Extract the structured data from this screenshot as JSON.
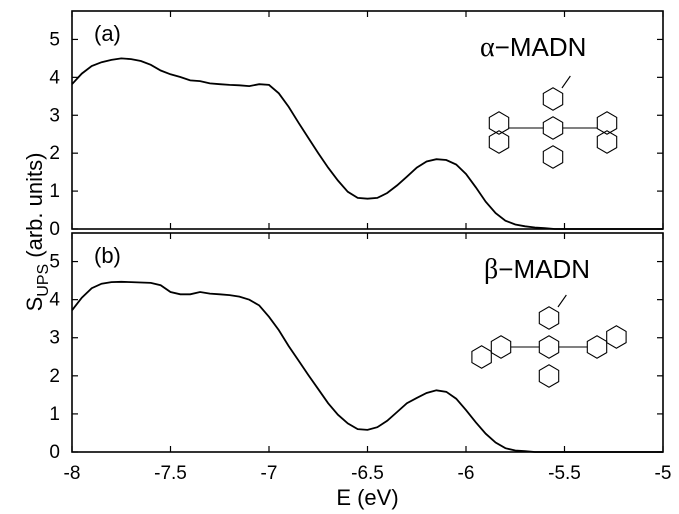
{
  "chart_data": [
    {
      "type": "line",
      "panel_label": "(a)",
      "molecule": {
        "greek": "α",
        "dash": "−",
        "name": "MADN",
        "structure_icon": "alpha-madn-structure-icon"
      },
      "xlabel": "E (eV)",
      "ylabel": "SUPS (arb. units)",
      "xlim": [
        -8,
        -5
      ],
      "ylim": [
        0,
        5.75
      ],
      "x_ticks": [
        "-8",
        "-7.5",
        "-7",
        "-6.5",
        "-6",
        "-5.5",
        "-5"
      ],
      "y_ticks": [
        "0",
        "1",
        "2",
        "3",
        "4",
        "5"
      ],
      "series": [
        {
          "points": [
            [
              -8.0,
              3.82
            ],
            [
              -7.95,
              4.1
            ],
            [
              -7.9,
              4.3
            ],
            [
              -7.85,
              4.4
            ],
            [
              -7.8,
              4.46
            ],
            [
              -7.75,
              4.5
            ],
            [
              -7.7,
              4.48
            ],
            [
              -7.65,
              4.43
            ],
            [
              -7.6,
              4.33
            ],
            [
              -7.55,
              4.18
            ],
            [
              -7.5,
              4.08
            ],
            [
              -7.45,
              4.01
            ],
            [
              -7.4,
              3.92
            ],
            [
              -7.35,
              3.9
            ],
            [
              -7.3,
              3.84
            ],
            [
              -7.25,
              3.82
            ],
            [
              -7.2,
              3.8
            ],
            [
              -7.15,
              3.79
            ],
            [
              -7.1,
              3.77
            ],
            [
              -7.05,
              3.82
            ],
            [
              -7.0,
              3.8
            ],
            [
              -6.95,
              3.58
            ],
            [
              -6.9,
              3.22
            ],
            [
              -6.85,
              2.8
            ],
            [
              -6.8,
              2.4
            ],
            [
              -6.75,
              2.0
            ],
            [
              -6.7,
              1.62
            ],
            [
              -6.65,
              1.28
            ],
            [
              -6.6,
              0.98
            ],
            [
              -6.55,
              0.82
            ],
            [
              -6.5,
              0.8
            ],
            [
              -6.45,
              0.82
            ],
            [
              -6.4,
              0.95
            ],
            [
              -6.35,
              1.15
            ],
            [
              -6.3,
              1.38
            ],
            [
              -6.25,
              1.62
            ],
            [
              -6.2,
              1.78
            ],
            [
              -6.15,
              1.84
            ],
            [
              -6.1,
              1.82
            ],
            [
              -6.05,
              1.7
            ],
            [
              -6.0,
              1.45
            ],
            [
              -5.95,
              1.1
            ],
            [
              -5.9,
              0.72
            ],
            [
              -5.85,
              0.42
            ],
            [
              -5.8,
              0.22
            ],
            [
              -5.75,
              0.12
            ],
            [
              -5.7,
              0.07
            ],
            [
              -5.65,
              0.04
            ],
            [
              -5.6,
              0.02
            ],
            [
              -5.55,
              0.0
            ],
            [
              -5.0,
              0.0
            ]
          ]
        }
      ]
    },
    {
      "type": "line",
      "panel_label": "(b)",
      "molecule": {
        "greek": "β",
        "dash": "−",
        "name": "MADN",
        "structure_icon": "beta-madn-structure-icon"
      },
      "xlabel": "E (eV)",
      "ylabel": "SUPS (arb. units)",
      "xlim": [
        -8,
        -5
      ],
      "ylim": [
        0,
        5.75
      ],
      "x_ticks": [
        "-8",
        "-7.5",
        "-7",
        "-6.5",
        "-6",
        "-5.5",
        "-5"
      ],
      "y_ticks": [
        "0",
        "1",
        "2",
        "3",
        "4",
        "5"
      ],
      "series": [
        {
          "points": [
            [
              -8.0,
              3.72
            ],
            [
              -7.95,
              4.05
            ],
            [
              -7.9,
              4.3
            ],
            [
              -7.85,
              4.42
            ],
            [
              -7.8,
              4.46
            ],
            [
              -7.75,
              4.47
            ],
            [
              -7.7,
              4.46
            ],
            [
              -7.65,
              4.45
            ],
            [
              -7.6,
              4.44
            ],
            [
              -7.55,
              4.38
            ],
            [
              -7.5,
              4.2
            ],
            [
              -7.45,
              4.14
            ],
            [
              -7.4,
              4.14
            ],
            [
              -7.35,
              4.2
            ],
            [
              -7.3,
              4.16
            ],
            [
              -7.25,
              4.14
            ],
            [
              -7.2,
              4.12
            ],
            [
              -7.15,
              4.08
            ],
            [
              -7.1,
              4.0
            ],
            [
              -7.05,
              3.85
            ],
            [
              -7.0,
              3.55
            ],
            [
              -6.95,
              3.2
            ],
            [
              -6.9,
              2.78
            ],
            [
              -6.85,
              2.4
            ],
            [
              -6.8,
              2.02
            ],
            [
              -6.75,
              1.65
            ],
            [
              -6.7,
              1.28
            ],
            [
              -6.65,
              0.98
            ],
            [
              -6.6,
              0.75
            ],
            [
              -6.55,
              0.6
            ],
            [
              -6.5,
              0.58
            ],
            [
              -6.45,
              0.65
            ],
            [
              -6.4,
              0.82
            ],
            [
              -6.35,
              1.05
            ],
            [
              -6.3,
              1.28
            ],
            [
              -6.25,
              1.42
            ],
            [
              -6.2,
              1.55
            ],
            [
              -6.15,
              1.62
            ],
            [
              -6.1,
              1.58
            ],
            [
              -6.05,
              1.4
            ],
            [
              -6.0,
              1.1
            ],
            [
              -5.95,
              0.78
            ],
            [
              -5.9,
              0.48
            ],
            [
              -5.85,
              0.25
            ],
            [
              -5.8,
              0.1
            ],
            [
              -5.75,
              0.04
            ],
            [
              -5.7,
              0.02
            ],
            [
              -5.65,
              0.0
            ],
            [
              -5.0,
              0.0
            ]
          ]
        }
      ]
    }
  ]
}
